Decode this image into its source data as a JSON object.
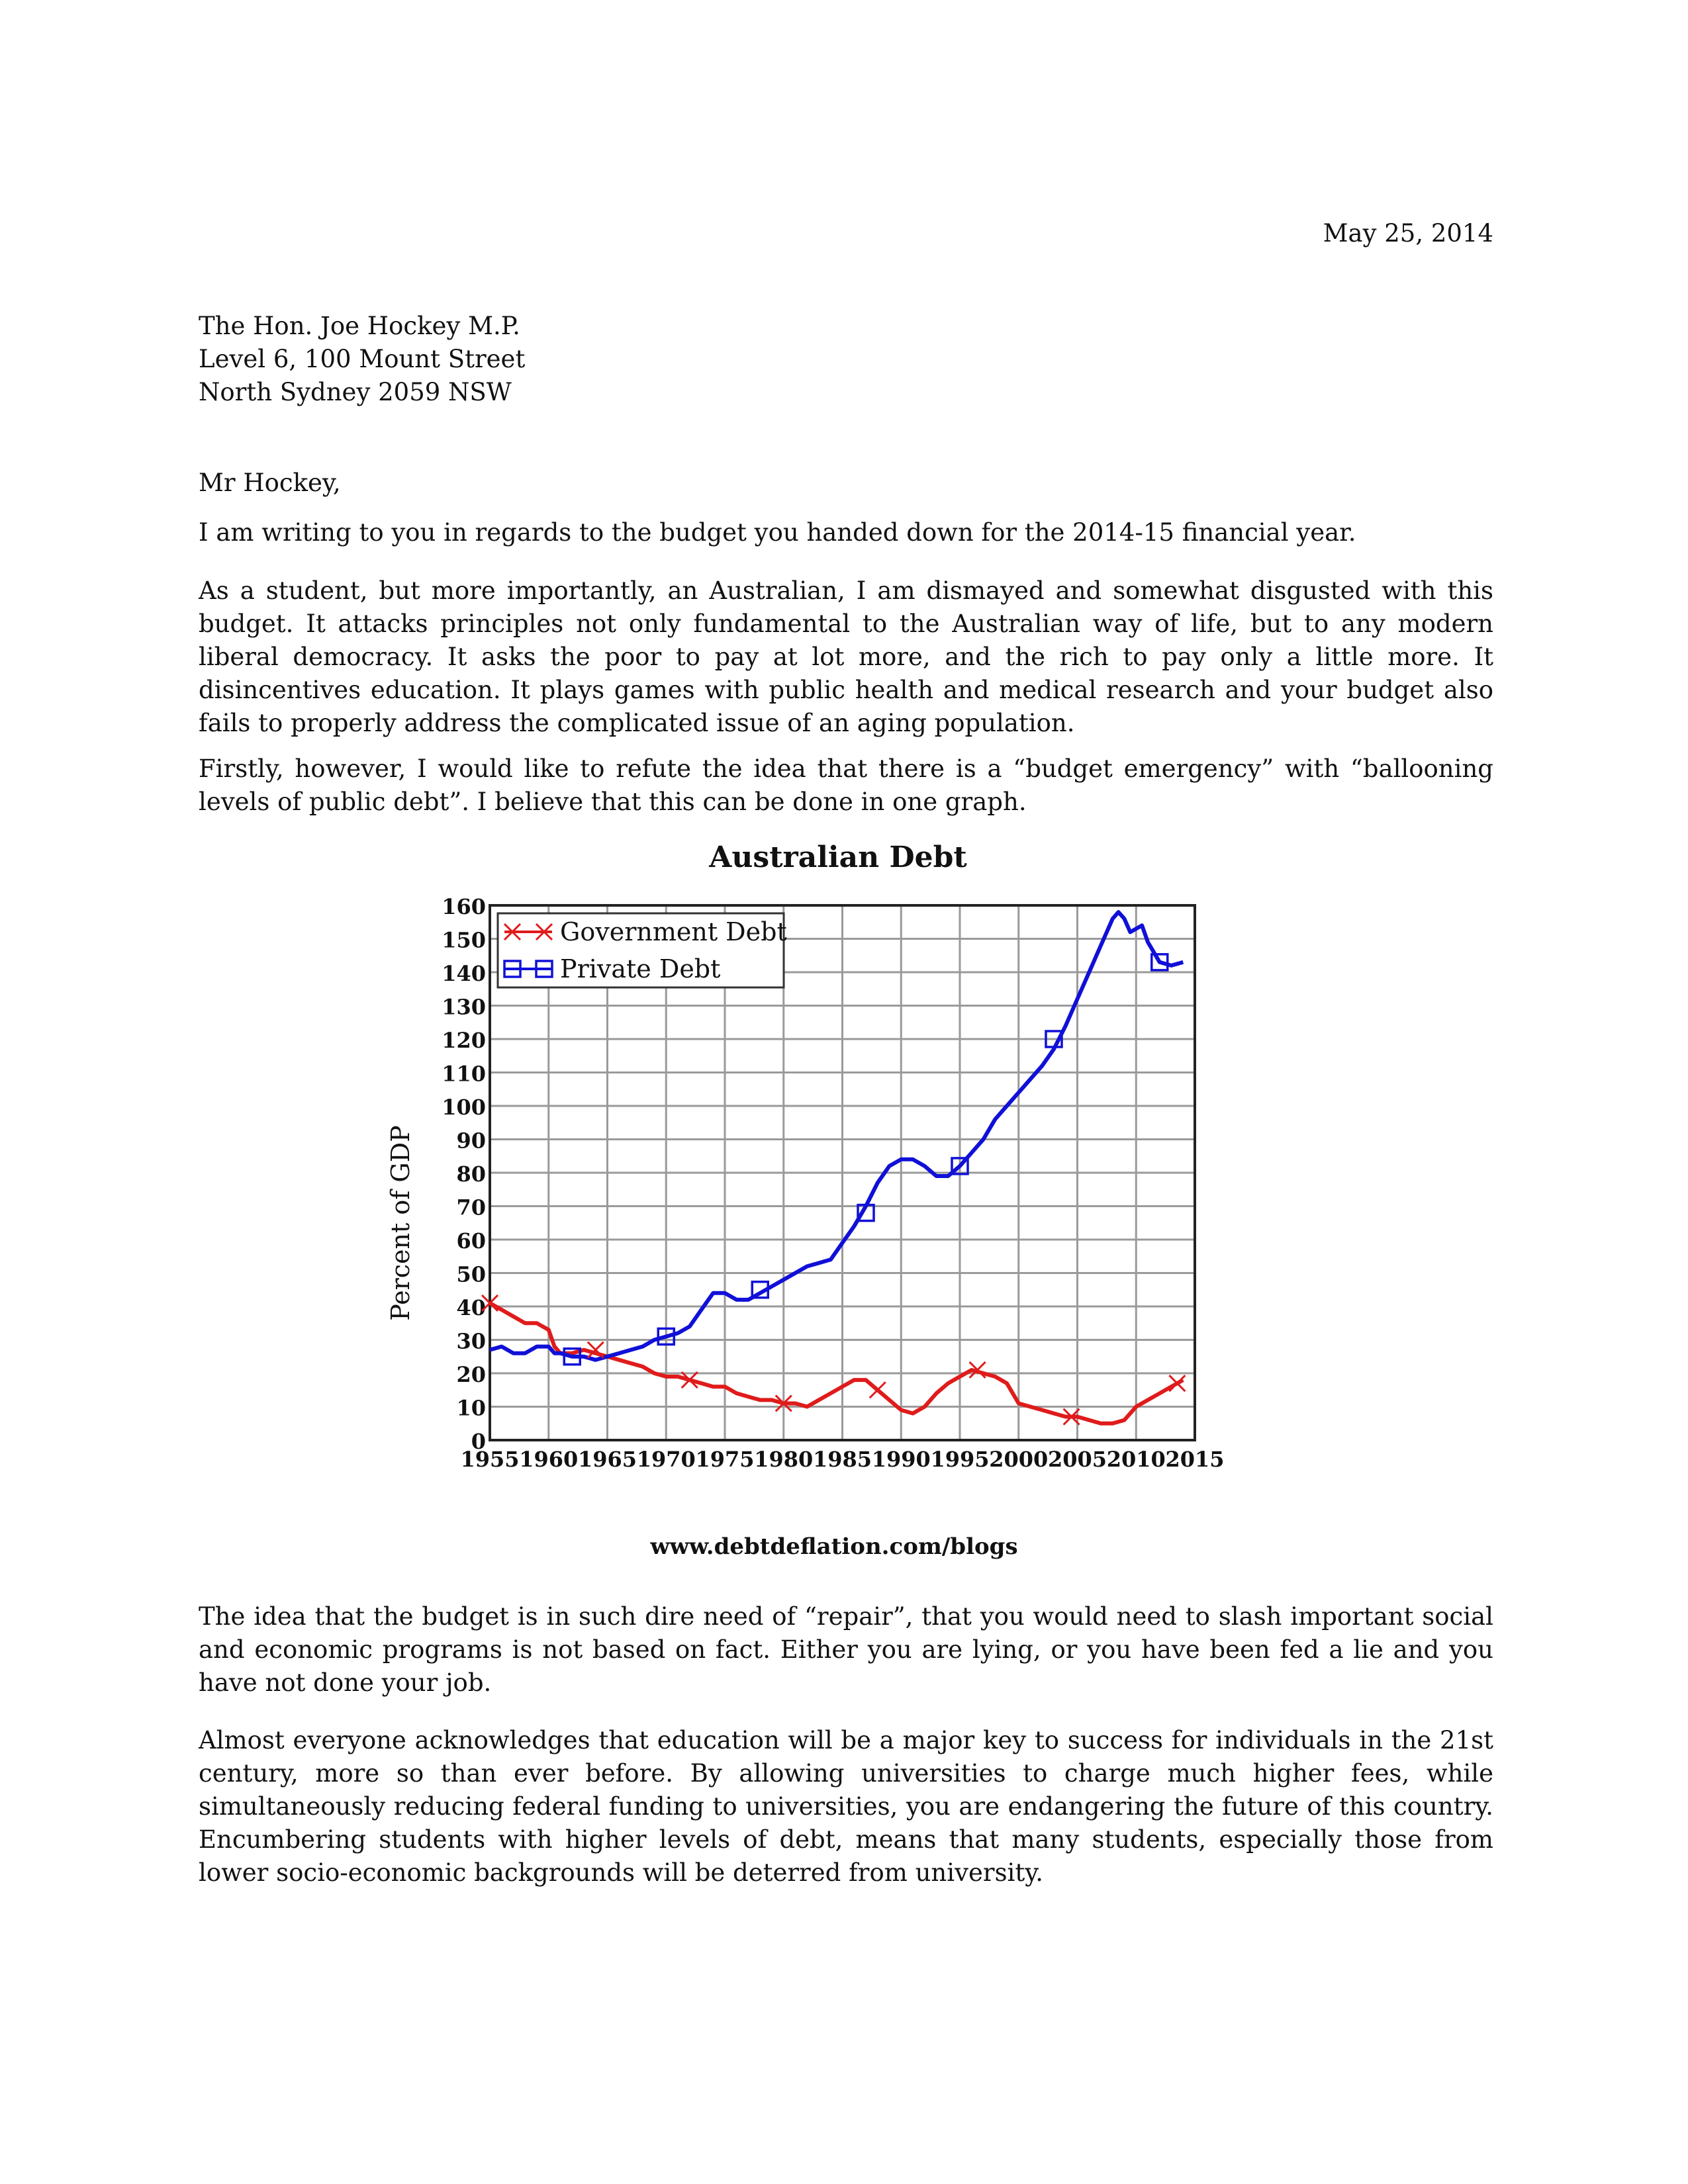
{
  "letter": {
    "date": "May 25, 2014",
    "address": [
      "The Hon. Joe Hockey M.P.",
      "Level 6, 100 Mount Street",
      "North Sydney 2059 NSW"
    ],
    "salutation": "Mr Hockey,",
    "paragraphs": [
      "I am writing to you in regards to the budget you handed down for the 2014-15 financial year.",
      "As a student, but more importantly, an Australian, I am dismayed and somewhat disgusted with this budget. It attacks principles not only fundamental to the Australian way of life, but to any modern liberal democracy. It asks the poor to pay at lot more, and the rich to pay only a little more. It disincentives education. It plays games with public health and medical research and your budget also fails to properly address the complicated issue of an aging population.",
      "Firstly, however, I would like to refute the idea that there is a “budget emergency” with “ballooning levels of public debt”. I believe that this can be done in one graph.",
      "The idea that the budget is in such dire need of “repair”, that you would need to slash important social and economic programs is not based on fact. Either you are lying, or you have been fed a lie and you have not done your job.",
      "Almost everyone acknowledges that education will be a major key to success for individuals in the 21st century, more so than ever before. By allowing universities to charge much higher fees, while simultaneously reducing federal funding to universities, you are endangering the future of this country. Encumbering students with higher levels of debt, means that many students, especially those from lower socio-economic backgrounds will be deterred from university."
    ]
  },
  "chart_data": {
    "type": "line",
    "title": "Australian Debt",
    "ylabel": "Percent of GDP",
    "xlabel": "",
    "source": "www.debtdeflation.com/blogs",
    "xlim": [
      1955,
      2015
    ],
    "ylim": [
      0,
      160
    ],
    "x_ticks": [
      "1955",
      "1960",
      "1965",
      "1970",
      "1975",
      "1980",
      "1985",
      "1990",
      "1995",
      "2000",
      "2005",
      "2010",
      "2015"
    ],
    "y_ticks": [
      "0",
      "10",
      "20",
      "30",
      "40",
      "50",
      "60",
      "70",
      "80",
      "90",
      "100",
      "110",
      "120",
      "130",
      "140",
      "150",
      "160"
    ],
    "grid": true,
    "legend_position": "top-left",
    "colors": {
      "government": "#e01b1b",
      "private": "#1010d8"
    },
    "series": [
      {
        "name": "Government Debt",
        "marker": "x",
        "points": [
          [
            1955,
            41
          ],
          [
            1956,
            39
          ],
          [
            1957,
            37
          ],
          [
            1958,
            35
          ],
          [
            1959,
            35
          ],
          [
            1960,
            33
          ],
          [
            1960.5,
            28
          ],
          [
            1961,
            26
          ],
          [
            1962,
            26
          ],
          [
            1963,
            27
          ],
          [
            1964,
            26
          ],
          [
            1965,
            25
          ],
          [
            1966,
            24
          ],
          [
            1967,
            23
          ],
          [
            1968,
            22
          ],
          [
            1969,
            20
          ],
          [
            1970,
            19
          ],
          [
            1971,
            19
          ],
          [
            1972,
            18
          ],
          [
            1973,
            17
          ],
          [
            1974,
            16
          ],
          [
            1975,
            16
          ],
          [
            1976,
            14
          ],
          [
            1977,
            13
          ],
          [
            1978,
            12
          ],
          [
            1979,
            12
          ],
          [
            1980,
            11
          ],
          [
            1981,
            11
          ],
          [
            1982,
            10
          ],
          [
            1983,
            12
          ],
          [
            1984,
            14
          ],
          [
            1985,
            16
          ],
          [
            1986,
            18
          ],
          [
            1987,
            18
          ],
          [
            1988,
            15
          ],
          [
            1989,
            12
          ],
          [
            1990,
            9
          ],
          [
            1991,
            8
          ],
          [
            1992,
            10
          ],
          [
            1993,
            14
          ],
          [
            1994,
            17
          ],
          [
            1995,
            19
          ],
          [
            1996,
            21
          ],
          [
            1997,
            20
          ],
          [
            1998,
            19
          ],
          [
            1999,
            17
          ],
          [
            2000,
            11
          ],
          [
            2001,
            10
          ],
          [
            2002,
            9
          ],
          [
            2003,
            8
          ],
          [
            2004,
            7
          ],
          [
            2005,
            7
          ],
          [
            2006,
            6
          ],
          [
            2007,
            5
          ],
          [
            2008,
            5
          ],
          [
            2009,
            6
          ],
          [
            2010,
            10
          ],
          [
            2011,
            12
          ],
          [
            2012,
            14
          ],
          [
            2013,
            16
          ],
          [
            2014,
            18
          ]
        ],
        "markers": [
          [
            1955,
            41
          ],
          [
            1964,
            27
          ],
          [
            1972,
            18
          ],
          [
            1980,
            11
          ],
          [
            1988,
            15
          ],
          [
            1996.5,
            21
          ],
          [
            2004.5,
            7
          ],
          [
            2013.5,
            17
          ]
        ]
      },
      {
        "name": "Private Debt",
        "marker": "square",
        "points": [
          [
            1955,
            27
          ],
          [
            1956,
            28
          ],
          [
            1957,
            26
          ],
          [
            1958,
            26
          ],
          [
            1959,
            28
          ],
          [
            1960,
            28
          ],
          [
            1960.5,
            26
          ],
          [
            1961,
            26
          ],
          [
            1962,
            25
          ],
          [
            1963,
            25
          ],
          [
            1964,
            24
          ],
          [
            1965,
            25
          ],
          [
            1966,
            26
          ],
          [
            1967,
            27
          ],
          [
            1968,
            28
          ],
          [
            1969,
            30
          ],
          [
            1970,
            31
          ],
          [
            1971,
            32
          ],
          [
            1972,
            34
          ],
          [
            1973,
            39
          ],
          [
            1974,
            44
          ],
          [
            1975,
            44
          ],
          [
            1976,
            42
          ],
          [
            1977,
            42
          ],
          [
            1978,
            44
          ],
          [
            1979,
            46
          ],
          [
            1980,
            48
          ],
          [
            1981,
            50
          ],
          [
            1982,
            52
          ],
          [
            1983,
            53
          ],
          [
            1984,
            54
          ],
          [
            1985,
            59
          ],
          [
            1986,
            64
          ],
          [
            1987,
            70
          ],
          [
            1988,
            77
          ],
          [
            1989,
            82
          ],
          [
            1990,
            84
          ],
          [
            1991,
            84
          ],
          [
            1992,
            82
          ],
          [
            1993,
            79
          ],
          [
            1994,
            79
          ],
          [
            1995,
            82
          ],
          [
            1996,
            86
          ],
          [
            1997,
            90
          ],
          [
            1998,
            96
          ],
          [
            1999,
            100
          ],
          [
            2000,
            104
          ],
          [
            2001,
            108
          ],
          [
            2002,
            112
          ],
          [
            2003,
            117
          ],
          [
            2004,
            124
          ],
          [
            2005,
            132
          ],
          [
            2006,
            140
          ],
          [
            2007,
            148
          ],
          [
            2008,
            156
          ],
          [
            2008.5,
            158
          ],
          [
            2009,
            156
          ],
          [
            2009.5,
            152
          ],
          [
            2010,
            153
          ],
          [
            2010.5,
            154
          ],
          [
            2011,
            149
          ],
          [
            2012,
            143
          ],
          [
            2013,
            142
          ],
          [
            2014,
            143
          ]
        ],
        "markers": [
          [
            1962,
            25
          ],
          [
            1970,
            31
          ],
          [
            1978,
            45
          ],
          [
            1987,
            68
          ],
          [
            1995,
            82
          ],
          [
            2003,
            120
          ],
          [
            2012,
            143
          ]
        ]
      }
    ]
  }
}
